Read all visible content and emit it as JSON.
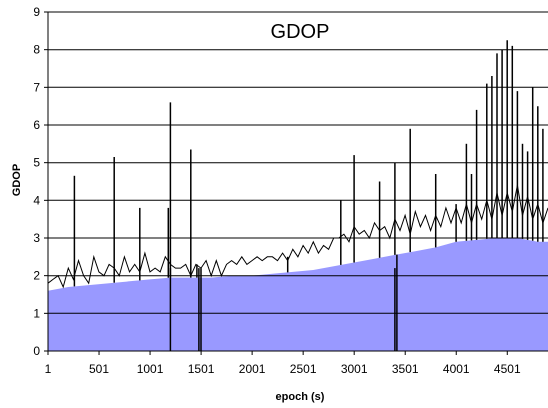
{
  "chart_data": {
    "type": "area",
    "title": "GDOP",
    "xlabel": "epoch (s)",
    "ylabel": "GDOP",
    "xlim": [
      1,
      4900
    ],
    "ylim": [
      0,
      9
    ],
    "x_ticks": [
      "1",
      "501",
      "1001",
      "1501",
      "2001",
      "2501",
      "3001",
      "3501",
      "4001",
      "4501"
    ],
    "x_tick_values": [
      1,
      501,
      1001,
      1501,
      2001,
      2501,
      3001,
      3501,
      4001,
      4501
    ],
    "y_ticks": [
      0,
      1,
      2,
      3,
      4,
      5,
      6,
      7,
      8,
      9
    ],
    "grid": "horizontal",
    "legend": "none",
    "colors": {
      "fill": "#9999ff",
      "line": "#000000",
      "grid": "#000000"
    },
    "series": [
      {
        "kind": "baseline-area",
        "x": [
          1,
          200,
          400,
          600,
          800,
          1000,
          1200,
          1400,
          1600,
          1800,
          2000,
          2200,
          2400,
          2600,
          2800,
          3000,
          3200,
          3400,
          3600,
          3800,
          4000,
          4200,
          4400,
          4600,
          4800,
          4900
        ],
        "values": [
          1.6,
          1.7,
          1.75,
          1.8,
          1.85,
          1.9,
          1.95,
          1.95,
          1.95,
          2.0,
          2.0,
          2.05,
          2.1,
          2.15,
          2.25,
          2.35,
          2.45,
          2.55,
          2.65,
          2.75,
          2.9,
          2.95,
          3.0,
          3.0,
          2.9,
          2.9
        ]
      },
      {
        "kind": "line",
        "x": [
          1,
          50,
          100,
          150,
          200,
          250,
          300,
          350,
          400,
          450,
          500,
          550,
          600,
          650,
          700,
          750,
          800,
          850,
          900,
          950,
          1000,
          1050,
          1100,
          1150,
          1200,
          1250,
          1300,
          1350,
          1400,
          1450,
          1500,
          1550,
          1600,
          1650,
          1700,
          1750,
          1800,
          1850,
          1900,
          1950,
          2000,
          2050,
          2100,
          2150,
          2200,
          2250,
          2300,
          2350,
          2400,
          2450,
          2500,
          2550,
          2600,
          2650,
          2700,
          2750,
          2800,
          2850,
          2900,
          2950,
          3000,
          3050,
          3100,
          3150,
          3200,
          3250,
          3300,
          3350,
          3400,
          3450,
          3500,
          3550,
          3600,
          3650,
          3700,
          3750,
          3800,
          3850,
          3900,
          3950,
          4000,
          4050,
          4100,
          4150,
          4200,
          4250,
          4300,
          4350,
          4400,
          4450,
          4500,
          4550,
          4600,
          4650,
          4700,
          4750,
          4800,
          4850,
          4900
        ],
        "values": [
          1.8,
          1.9,
          2.0,
          1.7,
          2.2,
          1.9,
          2.4,
          2.0,
          1.8,
          2.5,
          2.1,
          2.0,
          2.3,
          2.2,
          2.0,
          2.5,
          2.1,
          2.3,
          2.1,
          2.6,
          2.1,
          2.2,
          2.1,
          2.5,
          2.3,
          2.2,
          2.2,
          2.3,
          2.0,
          2.3,
          2.2,
          2.4,
          2.0,
          2.4,
          2.0,
          2.3,
          2.4,
          2.3,
          2.5,
          2.3,
          2.4,
          2.5,
          2.4,
          2.5,
          2.5,
          2.4,
          2.6,
          2.4,
          2.7,
          2.5,
          2.8,
          2.6,
          2.9,
          2.6,
          2.8,
          2.7,
          3.0,
          3.0,
          3.1,
          2.9,
          3.3,
          3.1,
          3.2,
          3.0,
          3.4,
          3.2,
          3.3,
          3.0,
          3.5,
          3.2,
          3.6,
          3.1,
          3.7,
          3.3,
          3.6,
          3.2,
          3.6,
          3.3,
          3.8,
          3.4,
          3.8,
          3.4,
          3.9,
          3.4,
          3.9,
          3.5,
          4.0,
          3.5,
          4.2,
          3.6,
          4.2,
          3.7,
          4.4,
          3.6,
          4.1,
          3.5,
          3.9,
          3.4,
          3.8
        ]
      },
      {
        "kind": "spikes",
        "x": [
          260,
          650,
          900,
          1180,
          1200,
          1400,
          1460,
          2350,
          2870,
          3000,
          3250,
          3400,
          3420,
          3550,
          3800,
          4000,
          4100,
          4150,
          4200,
          4300,
          4350,
          4400,
          4450,
          4500,
          4550,
          4600,
          4650,
          4700,
          4750,
          4800,
          4850
        ],
        "values": [
          4.65,
          5.15,
          3.8,
          3.8,
          6.6,
          5.35,
          2.3,
          2.5,
          4.0,
          5.2,
          4.5,
          5.0,
          0.0,
          5.9,
          4.7,
          3.9,
          5.5,
          4.7,
          6.4,
          7.1,
          7.3,
          7.9,
          8.0,
          8.25,
          8.1,
          6.9,
          5.5,
          5.3,
          7.0,
          6.5,
          5.9
        ]
      },
      {
        "kind": "drops",
        "x": [
          1200,
          1480,
          1500,
          3400
        ],
        "values": [
          0.0,
          0.0,
          0.0,
          0.0
        ]
      }
    ]
  }
}
